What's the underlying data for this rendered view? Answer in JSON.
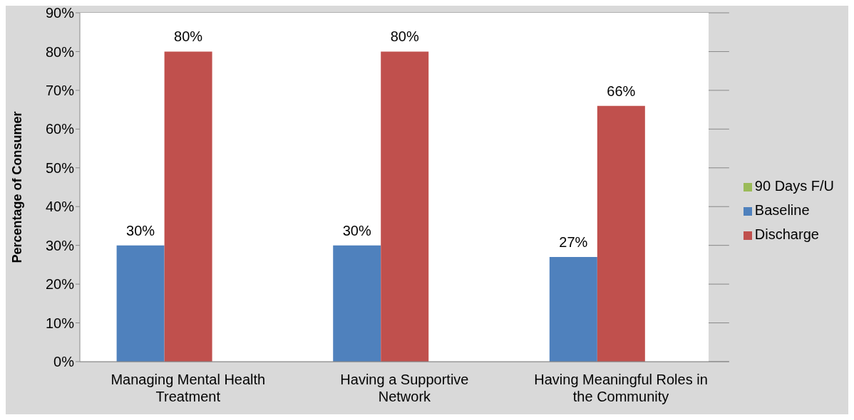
{
  "chart_data": {
    "type": "bar",
    "ylabel": "Percentage of Consumer",
    "categories": [
      "Managing Mental Health Treatment",
      "Having a Supportive Network",
      "Having Meaningful Roles in the Community"
    ],
    "series": [
      {
        "name": "Baseline",
        "color": "#4f81bd",
        "values": [
          30,
          30,
          27
        ],
        "value_labels": [
          "30%",
          "30%",
          "27%"
        ]
      },
      {
        "name": "Discharge",
        "color": "#c0504d",
        "values": [
          80,
          80,
          66
        ],
        "value_labels": [
          "80%",
          "80%",
          "66%"
        ]
      },
      {
        "name": "90 Days F/U",
        "color": "#9bbb59",
        "values": [
          null,
          null,
          null
        ],
        "value_labels": [
          null,
          null,
          null
        ]
      }
    ],
    "ylim": [
      0,
      90
    ],
    "yticks": [
      {
        "value": 0,
        "label": "0%"
      },
      {
        "value": 10,
        "label": "10%"
      },
      {
        "value": 20,
        "label": "20%"
      },
      {
        "value": 30,
        "label": "30%"
      },
      {
        "value": 40,
        "label": "40%"
      },
      {
        "value": 50,
        "label": "50%"
      },
      {
        "value": 60,
        "label": "60%"
      },
      {
        "value": 70,
        "label": "70%"
      },
      {
        "value": 80,
        "label": "80%"
      },
      {
        "value": 90,
        "label": "90%"
      }
    ],
    "grid": "y",
    "legend": "right"
  }
}
